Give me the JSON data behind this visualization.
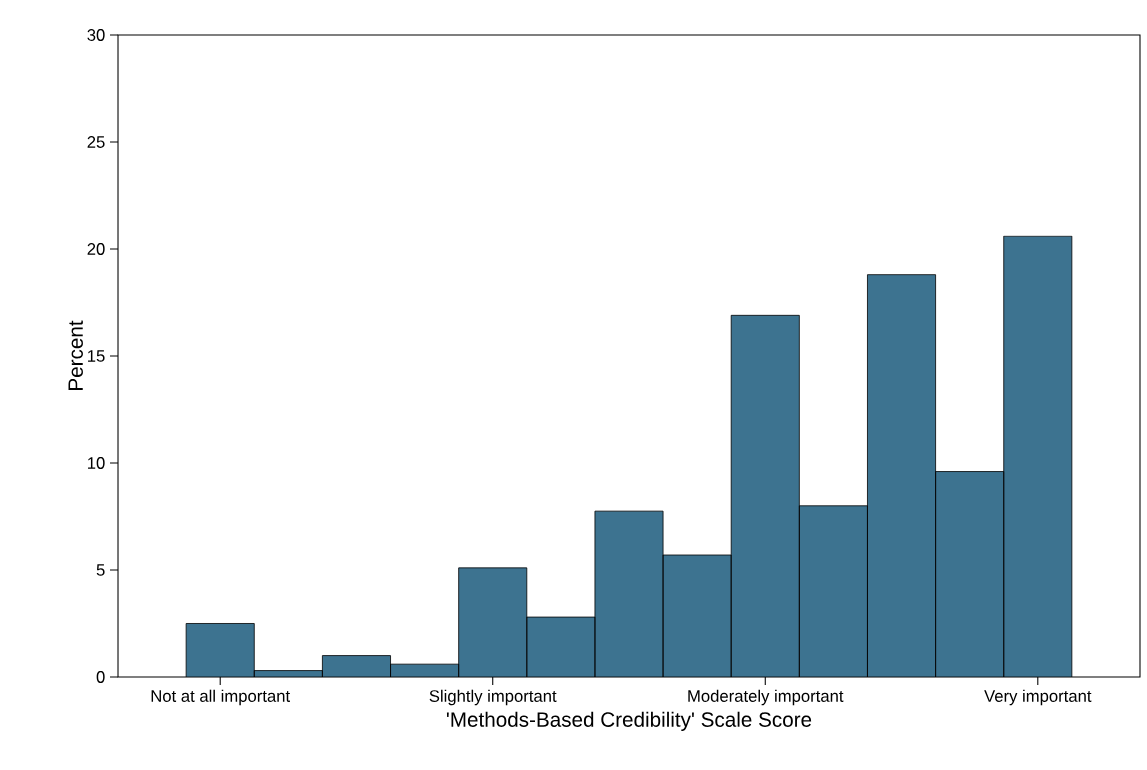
{
  "chart_data": {
    "type": "bar",
    "xlabel": "'Methods-Based Credibility' Scale Score",
    "ylabel": "Percent",
    "categories": [
      "Not at all important",
      null,
      null,
      null,
      "Slightly important",
      null,
      null,
      null,
      "Moderately important",
      null,
      null,
      null,
      "Very important"
    ],
    "values": [
      2.5,
      0.3,
      1.0,
      0.6,
      5.1,
      2.8,
      7.75,
      5.7,
      16.9,
      8.0,
      18.8,
      9.6,
      20.6
    ],
    "color": "#3d7390",
    "ylim": [
      0,
      30
    ],
    "yticks": [
      0,
      5,
      10,
      15,
      20,
      25,
      30
    ],
    "grid": false
  }
}
